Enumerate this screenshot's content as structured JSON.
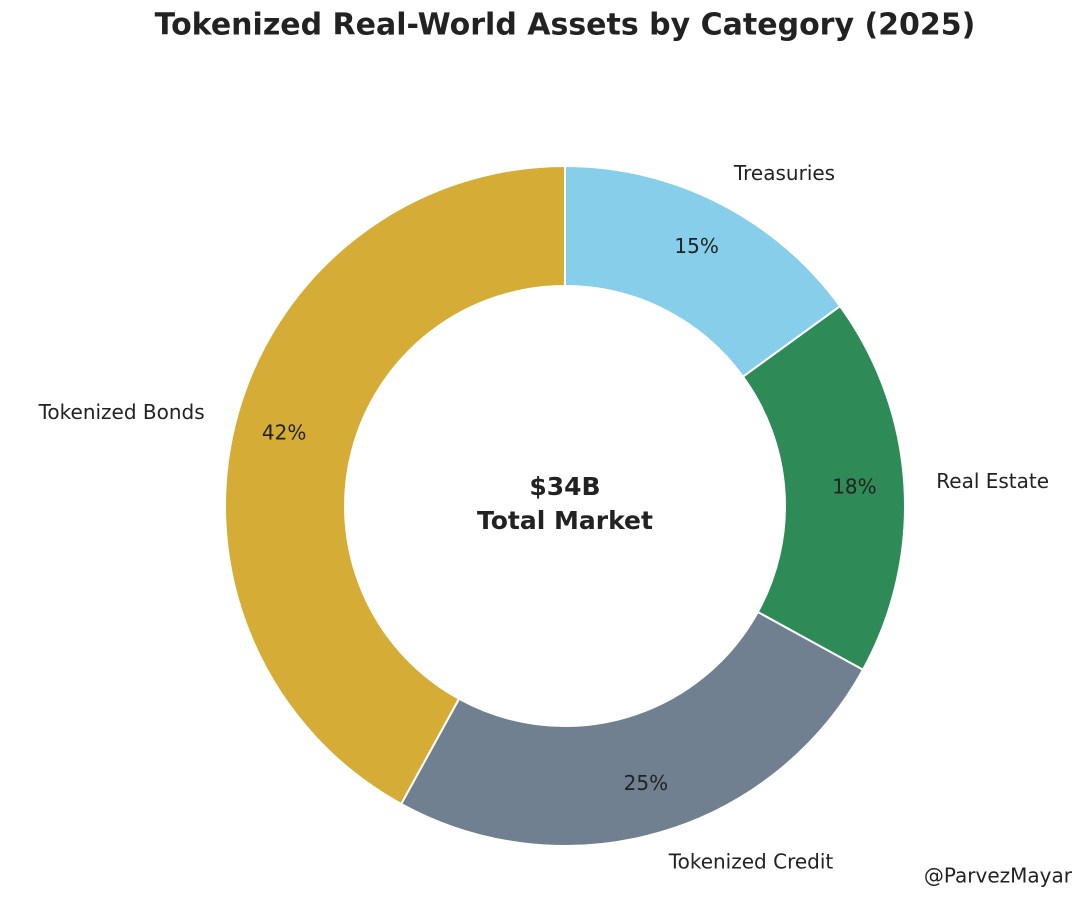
{
  "chart_data": {
    "type": "pie",
    "title": "Tokenized Real-World Assets by Category (2025)",
    "categories": [
      "Treasuries",
      "Real Estate",
      "Tokenized Credit",
      "Tokenized Bonds"
    ],
    "values": [
      15,
      18,
      25,
      42
    ],
    "value_labels": [
      "15%",
      "18%",
      "25%",
      "42%"
    ],
    "colors": [
      "#87ceeb",
      "#2e8b57",
      "#708090",
      "#d4ac36"
    ],
    "center_label": [
      "$34B",
      "Total Market"
    ],
    "watermark": "@ParvezMayar"
  }
}
